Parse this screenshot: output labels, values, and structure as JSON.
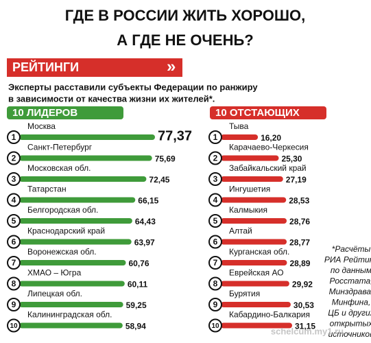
{
  "header": {
    "title_lines": [
      "ГДЕ В РОССИИ ЖИТЬ ХОРОШО,",
      "А ГДЕ НЕ ОЧЕНЬ?"
    ],
    "banner": "РЕЙТИНГИ",
    "banner_arrows": "»",
    "subtitle_lines": [
      "Эксперты расставили субъекты Федерации по ранжиру",
      "в зависимости от качества жизни их жителей*."
    ]
  },
  "chart_data": [
    {
      "type": "bar",
      "orientation": "horizontal",
      "title": "10 ЛИДЕРОВ",
      "color": "#3f9b3a",
      "ranks": [
        "1",
        "2",
        "3",
        "4",
        "5",
        "6",
        "7",
        "8",
        "9",
        "10"
      ],
      "categories": [
        "Москва",
        "Санкт-Петербург",
        "Московская обл.",
        "Татарстан",
        "Белгородская обл.",
        "Краснодарский край",
        "Воронежская обл.",
        "ХМАО – Югра",
        "Липецкая обл.",
        "Калининградская обл."
      ],
      "values": [
        77.37,
        75.69,
        72.45,
        66.15,
        64.43,
        63.97,
        60.76,
        60.11,
        59.25,
        58.94
      ],
      "value_labels": [
        "77,37",
        "75,69",
        "72,45",
        "66,15",
        "64,43",
        "63,97",
        "60,76",
        "60,11",
        "59,25",
        "58,94"
      ]
    },
    {
      "type": "bar",
      "orientation": "horizontal",
      "title": "10 ОТСТАЮЩИХ",
      "color": "#d62f2a",
      "ranks": [
        "1",
        "2",
        "3",
        "4",
        "5",
        "6",
        "7",
        "8",
        "9",
        "10"
      ],
      "categories": [
        "Тыва",
        "Карачаево-Черкесия",
        "Забайкальский край",
        "Ингушетия",
        "Калмыкия",
        "Алтай",
        "Курганская обл.",
        "Еврейская АО",
        "Бурятия",
        "Кабардино-Балкария"
      ],
      "values": [
        16.2,
        25.3,
        27.19,
        28.53,
        28.76,
        28.77,
        28.89,
        29.92,
        30.53,
        31.15
      ],
      "value_labels": [
        "16,20",
        "25,30",
        "27,19",
        "28,53",
        "28,76",
        "28,77",
        "28,89",
        "29,92",
        "30,53",
        "31,15"
      ]
    }
  ],
  "footnote_lines": [
    "*Расчёты",
    "РИА Рейтинг",
    "по данным",
    "Росстата,",
    "Минздрава,",
    "Минфина,",
    "ЦБ и других",
    "открытых",
    "источников"
  ],
  "watermark": "schelcum.my1.ru"
}
